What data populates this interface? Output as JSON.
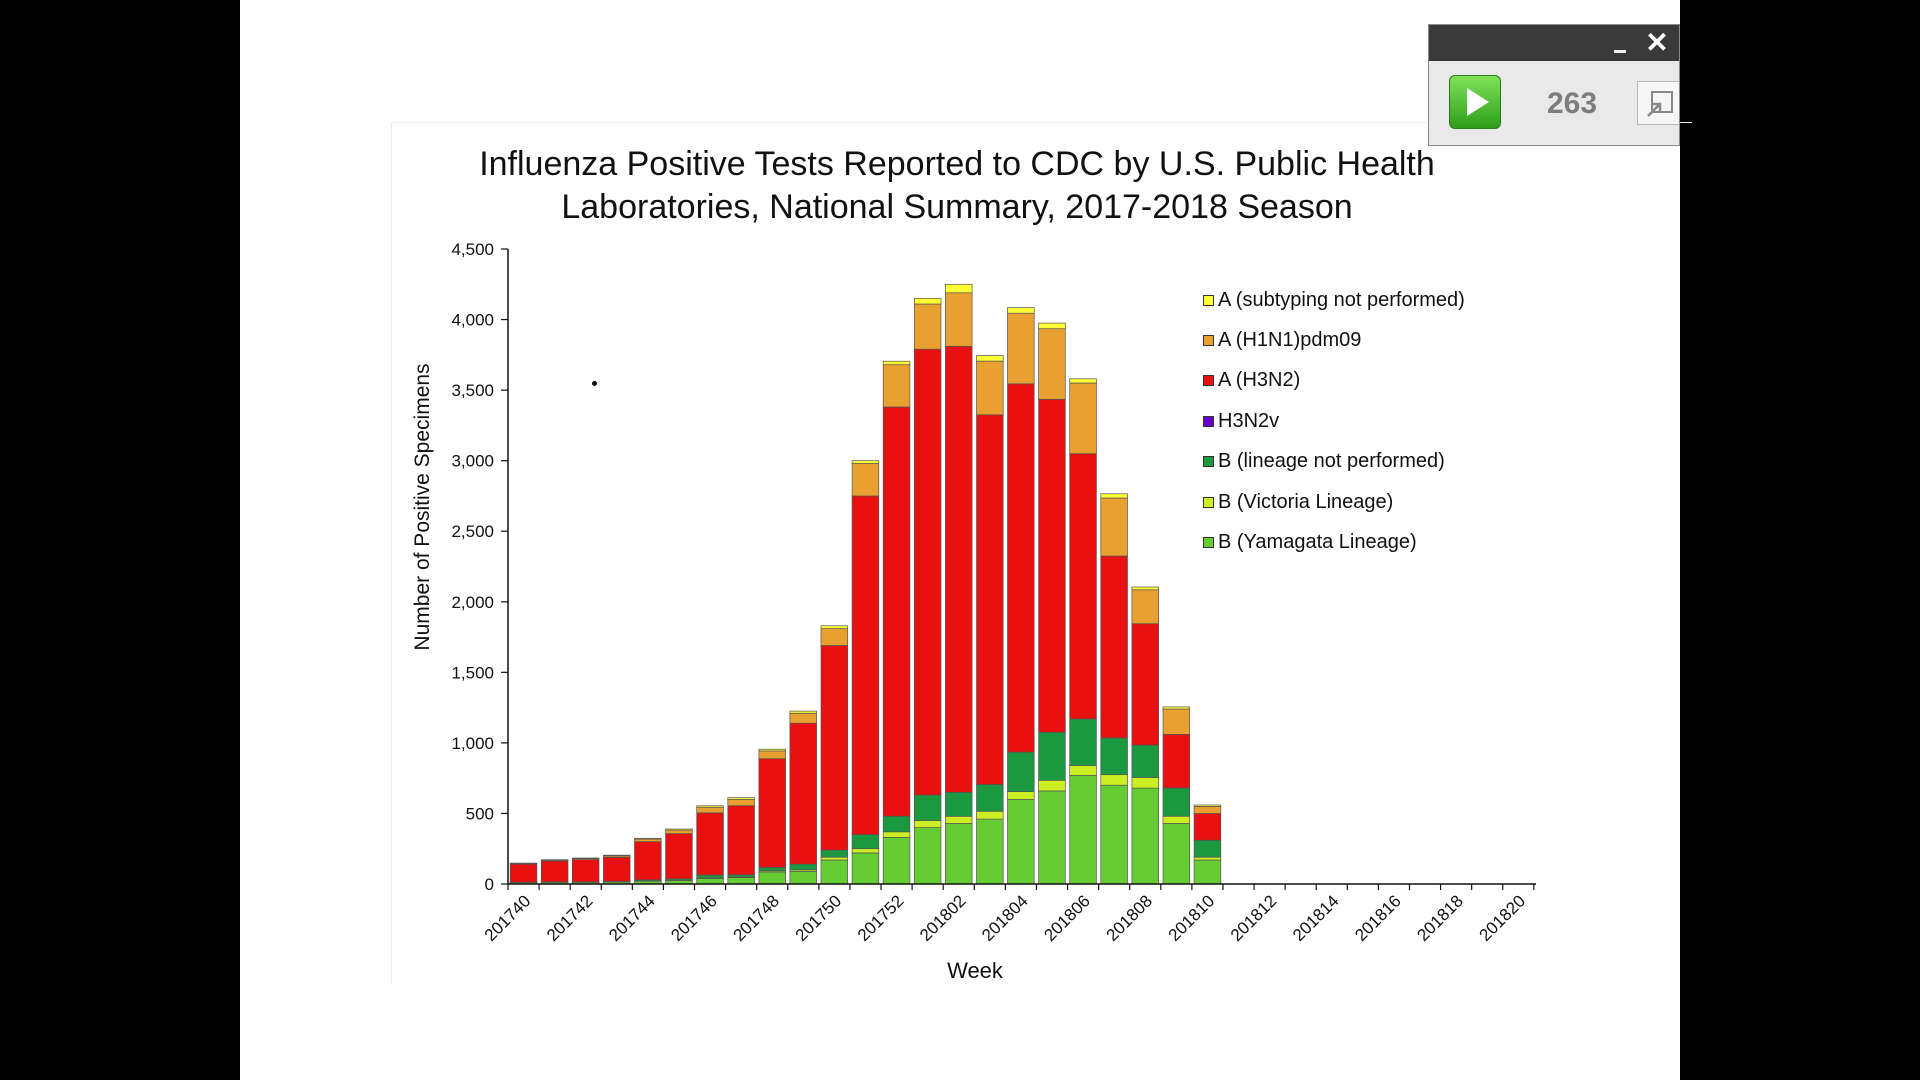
{
  "chart_data": {
    "type": "bar",
    "stacked": true,
    "title_line1": "Influenza Positive Tests Reported to CDC by U.S. Public Health",
    "title_line2": "Laboratories, National Summary, 2017-2018 Season",
    "xlabel": "Week",
    "ylabel": "Number of Positive Specimens",
    "ylim": [
      0,
      4500
    ],
    "yticks": [
      0,
      500,
      1000,
      1500,
      2000,
      2500,
      3000,
      3500,
      4000,
      4500
    ],
    "ytick_labels": [
      "0",
      "500",
      "1,000",
      "1,500",
      "2,000",
      "2,500",
      "3,000",
      "3,500",
      "4,000",
      "4,500"
    ],
    "categories": [
      "201740",
      "201741",
      "201742",
      "201743",
      "201744",
      "201745",
      "201746",
      "201747",
      "201748",
      "201749",
      "201750",
      "201751",
      "201752",
      "201801",
      "201802",
      "201803",
      "201804",
      "201805",
      "201806",
      "201807",
      "201808",
      "201809",
      "201810",
      "201811",
      "201812",
      "201813",
      "201814",
      "201815",
      "201816",
      "201817",
      "201818",
      "201819",
      "201820"
    ],
    "xtick_labels": [
      "201740",
      "201742",
      "201744",
      "201746",
      "201748",
      "201750",
      "201752",
      "201802",
      "201804",
      "201806",
      "201808",
      "201810",
      "201812",
      "201814",
      "201816",
      "201818",
      "201820"
    ],
    "legend_position": "top-right",
    "series": [
      {
        "name": "B (Yamagata Lineage)",
        "color": "#66cc33",
        "values": [
          10,
          12,
          12,
          15,
          20,
          25,
          40,
          45,
          85,
          90,
          170,
          220,
          330,
          400,
          430,
          460,
          600,
          660,
          770,
          700,
          680,
          430,
          170,
          0,
          0,
          0,
          0,
          0,
          0,
          0,
          0,
          0,
          0
        ]
      },
      {
        "name": "B (Victoria Lineage)",
        "color": "#ccee22",
        "values": [
          0,
          0,
          0,
          0,
          2,
          2,
          4,
          5,
          8,
          10,
          20,
          30,
          40,
          50,
          50,
          55,
          55,
          75,
          70,
          75,
          75,
          50,
          20,
          0,
          0,
          0,
          0,
          0,
          0,
          0,
          0,
          0,
          0
        ]
      },
      {
        "name": "B (lineage not performed)",
        "color": "#1a9940",
        "values": [
          2,
          3,
          3,
          4,
          8,
          10,
          20,
          15,
          25,
          40,
          50,
          100,
          110,
          180,
          170,
          190,
          280,
          340,
          330,
          260,
          230,
          200,
          120,
          0,
          0,
          0,
          0,
          0,
          0,
          0,
          0,
          0,
          0
        ]
      },
      {
        "name": "H3N2v",
        "color": "#6600cc",
        "values": [
          0,
          0,
          0,
          0,
          0,
          0,
          0,
          0,
          0,
          0,
          0,
          0,
          0,
          0,
          0,
          0,
          0,
          0,
          0,
          0,
          0,
          0,
          0,
          0,
          0,
          0,
          0,
          0,
          0,
          0,
          0,
          0,
          0
        ]
      },
      {
        "name": "A (H3N2)",
        "color": "#e81010",
        "values": [
          128,
          148,
          158,
          170,
          270,
          320,
          440,
          490,
          770,
          1000,
          1450,
          2400,
          2900,
          3160,
          3160,
          2620,
          2610,
          2360,
          1880,
          1290,
          860,
          380,
          190,
          0,
          0,
          0,
          0,
          0,
          0,
          0,
          0,
          0,
          0
        ]
      },
      {
        "name": "A (H1N1)pdm09",
        "color": "#e8a030",
        "values": [
          5,
          6,
          7,
          10,
          18,
          25,
          40,
          45,
          55,
          70,
          120,
          230,
          300,
          320,
          380,
          380,
          500,
          500,
          500,
          410,
          240,
          180,
          50,
          0,
          0,
          0,
          0,
          0,
          0,
          0,
          0,
          0,
          0
        ]
      },
      {
        "name": "A (subtyping not performed)",
        "color": "#ffff33",
        "values": [
          3,
          3,
          4,
          5,
          6,
          8,
          10,
          12,
          12,
          15,
          20,
          20,
          25,
          40,
          60,
          40,
          40,
          40,
          30,
          30,
          20,
          15,
          10,
          0,
          0,
          0,
          0,
          0,
          0,
          0,
          0,
          0,
          0
        ]
      }
    ],
    "legend_order": [
      "A (subtyping not performed)",
      "A (H1N1)pdm09",
      "A (H3N2)",
      "H3N2v",
      "B (lineage not performed)",
      "B (Victoria Lineage)",
      "B (Yamagata Lineage)"
    ]
  },
  "player": {
    "counter": "263",
    "icons": [
      "play-icon",
      "minimize-icon",
      "close-icon",
      "expand-icon"
    ]
  }
}
